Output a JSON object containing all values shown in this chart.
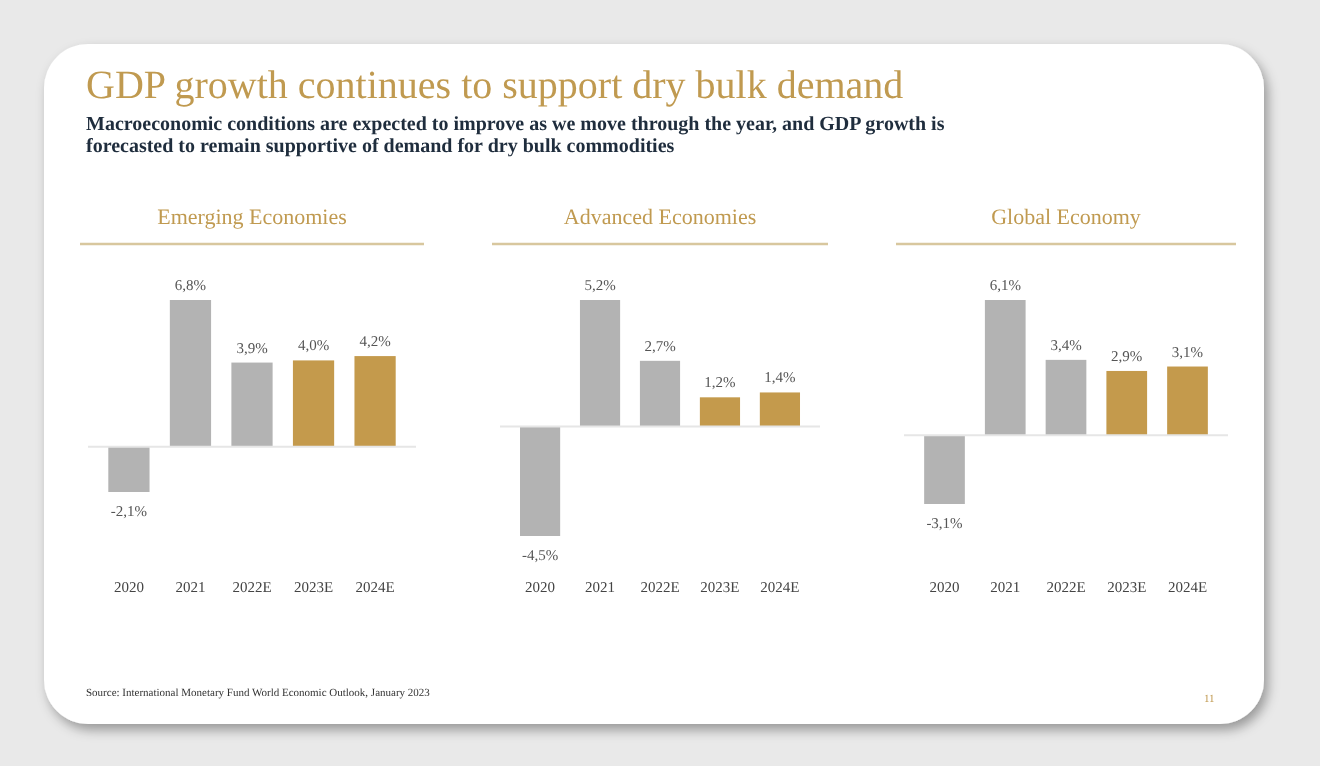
{
  "chart_data": [
    {
      "type": "bar",
      "title": "Emerging Economies",
      "categories": [
        "2020",
        "2021",
        "2022E",
        "2023E",
        "2024E"
      ],
      "values": [
        -2.1,
        6.8,
        3.9,
        4.0,
        4.2
      ],
      "colors": [
        "#b3b3b3",
        "#b3b3b3",
        "#b3b3b3",
        "#c49a4c",
        "#c49a4c"
      ],
      "value_labels": [
        "-2,1%",
        "6,8%",
        "3,9%",
        "4,0%",
        "4,2%"
      ],
      "annotations": [
        "GDP growth continues to support dry bulk demand",
        "Macroeconomic conditions are expected to improve as we move through the year, and GDP growth is forecasted to remain supportive of demand for dry bulk commodities",
        "Source: International Monetary Fund World Economic Outlook, January 2023",
        "11"
      ]
    },
    {
      "type": "bar",
      "title": "Advanced Economies",
      "categories": [
        "2020",
        "2021",
        "2022E",
        "2023E",
        "2024E"
      ],
      "values": [
        -4.5,
        5.2,
        2.7,
        1.2,
        1.4
      ],
      "colors": [
        "#b3b3b3",
        "#b3b3b3",
        "#b3b3b3",
        "#c49a4c",
        "#c49a4c"
      ],
      "value_labels": [
        "-4,5%",
        "5,2%",
        "2,7%",
        "1,2%",
        "1,4%"
      ]
    },
    {
      "type": "bar",
      "title": "Global Economy",
      "categories": [
        "2020",
        "2021",
        "2022E",
        "2023E",
        "2024E"
      ],
      "values": [
        -3.1,
        6.1,
        3.4,
        2.9,
        3.1
      ],
      "colors": [
        "#b3b3b3",
        "#b3b3b3",
        "#b3b3b3",
        "#c49a4c",
        "#c49a4c"
      ],
      "value_labels": [
        "-3,1%",
        "6,1%",
        "3,4%",
        "2,9%",
        "3,1%"
      ]
    }
  ]
}
